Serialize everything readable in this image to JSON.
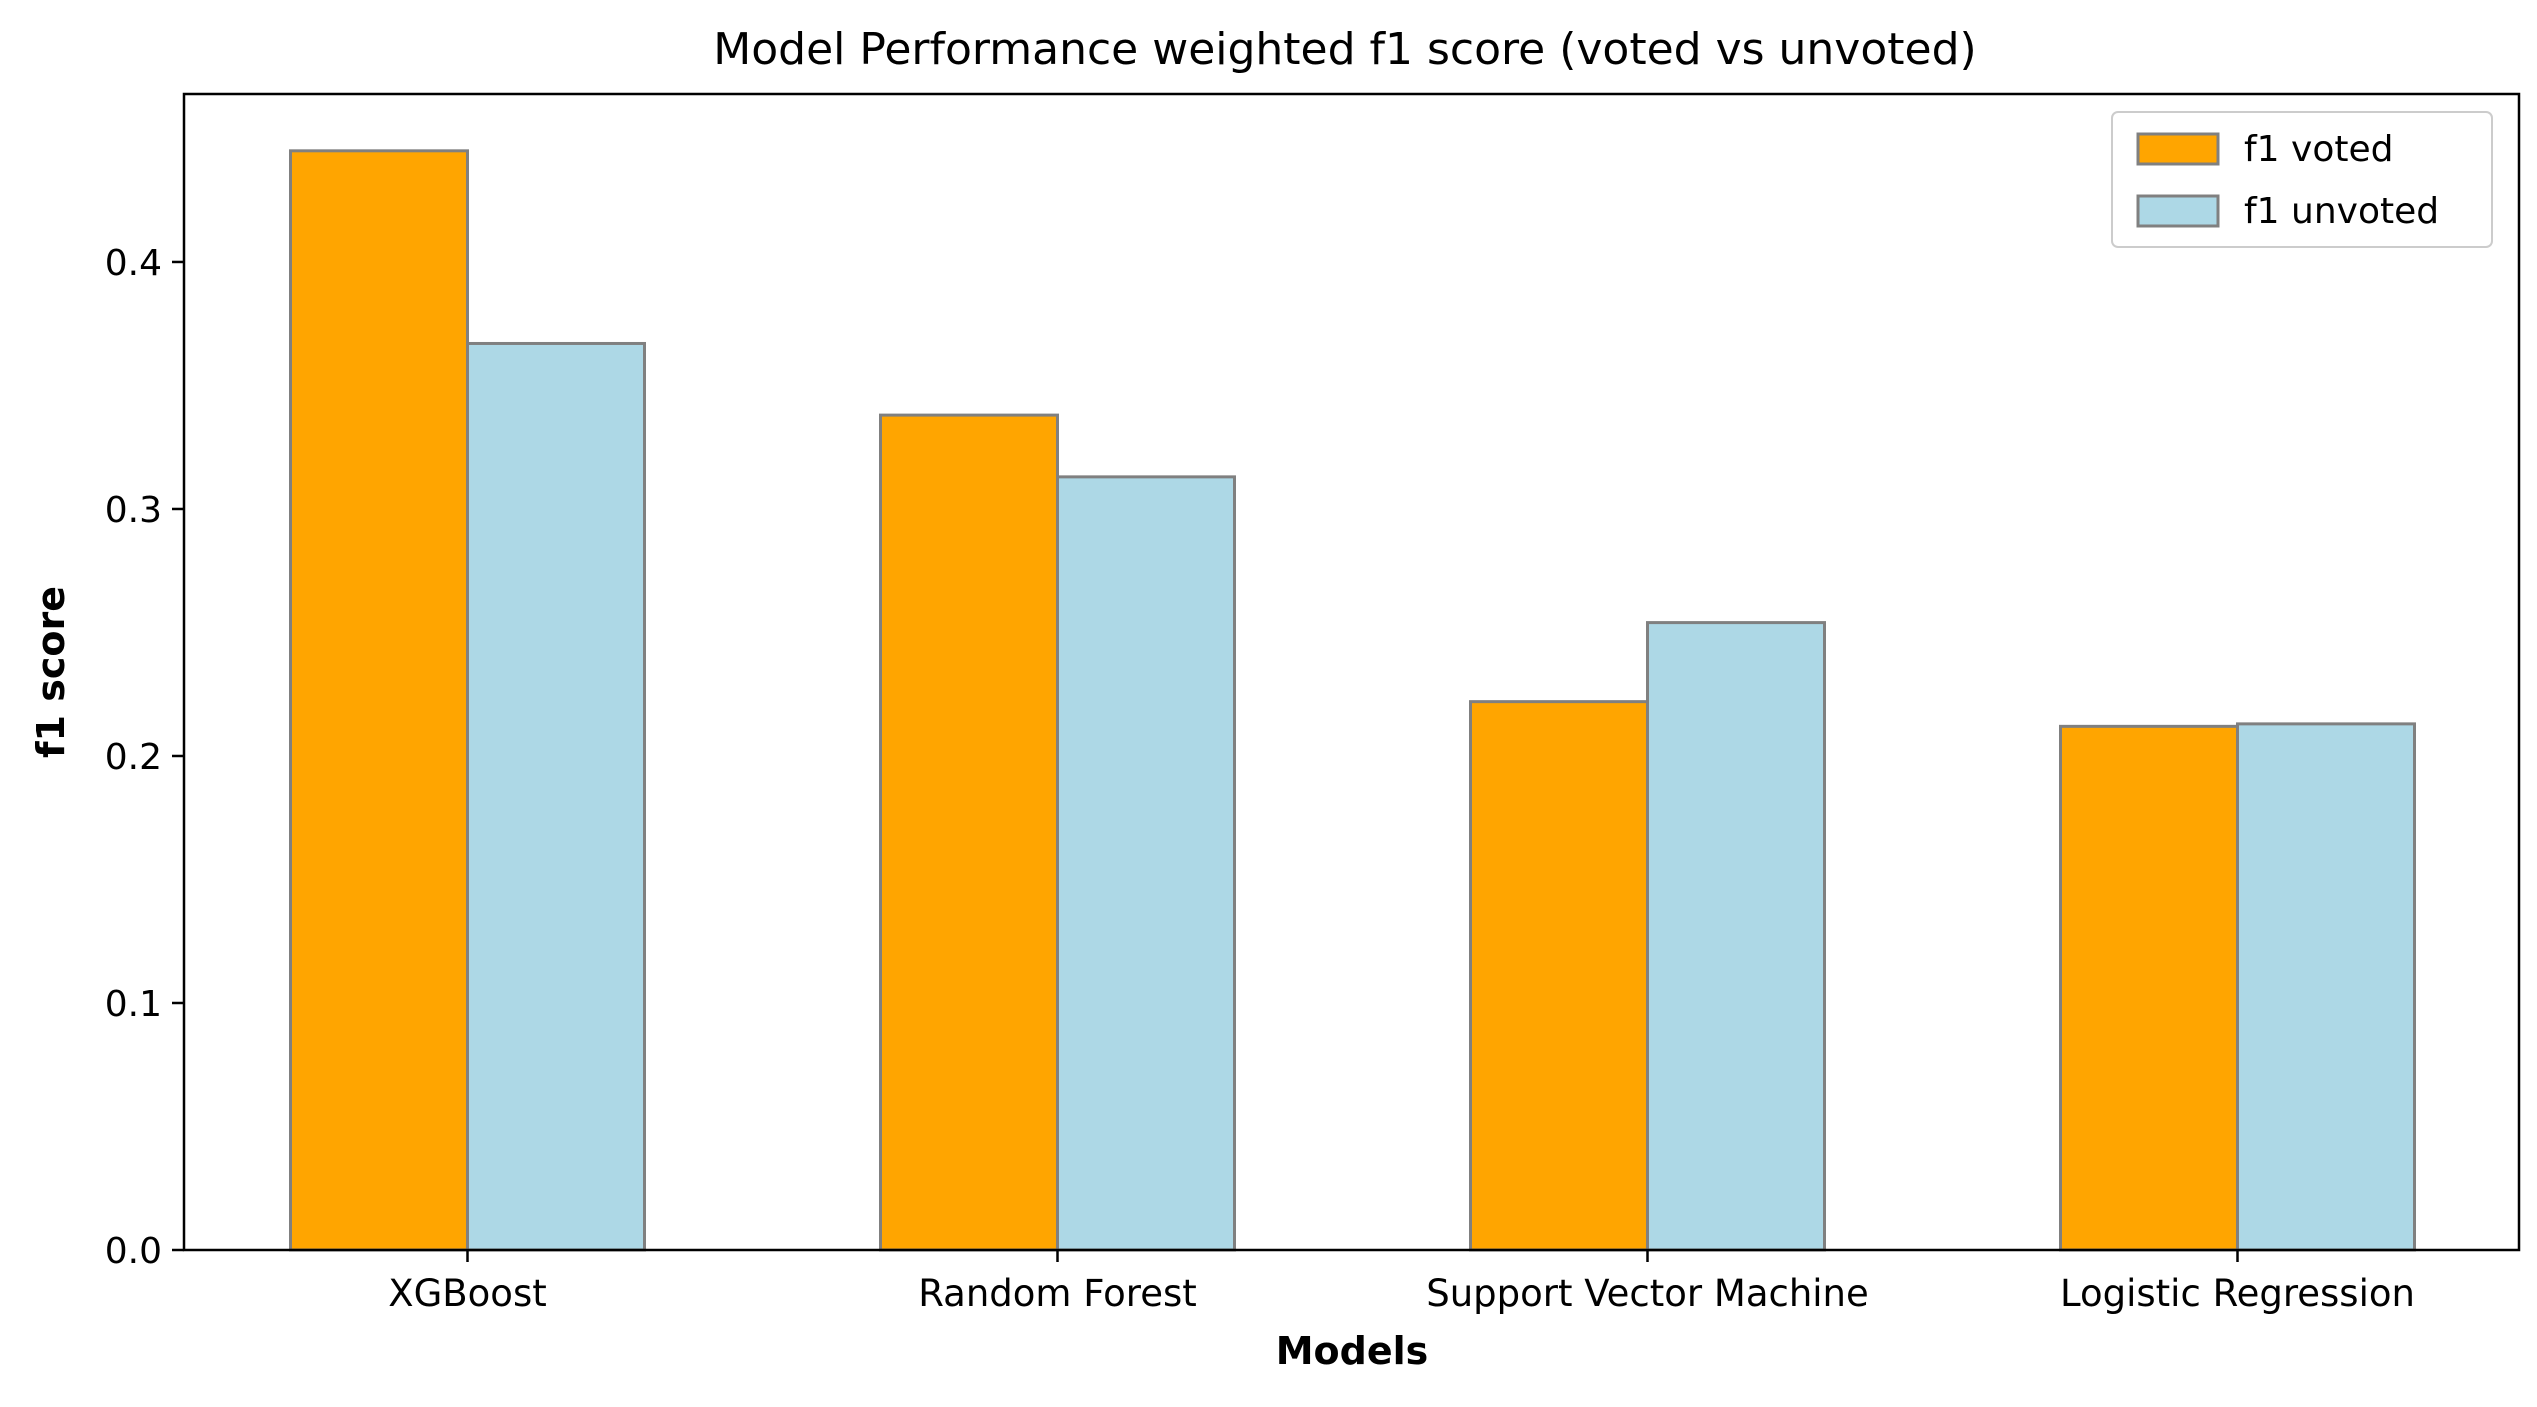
{
  "chart_data": {
    "type": "bar",
    "title": "Model Performance weighted f1 score (voted vs unvoted)",
    "xlabel": "Models",
    "ylabel": "f1 score",
    "categories": [
      "XGBoost",
      "Random Forest",
      "Support Vector Machine",
      "Logistic Regression"
    ],
    "series": [
      {
        "name": "f1 voted",
        "color": "#ffa500",
        "values": [
          0.445,
          0.338,
          0.222,
          0.212
        ]
      },
      {
        "name": "f1 unvoted",
        "color": "#add8e6",
        "values": [
          0.367,
          0.313,
          0.254,
          0.213
        ]
      }
    ],
    "ylim": [
      0,
      0.468
    ],
    "yticks": [
      0.0,
      0.1,
      0.2,
      0.3,
      0.4
    ],
    "ytick_labels": [
      "0.0",
      "0.1",
      "0.2",
      "0.3",
      "0.4"
    ],
    "legend_position": "top-right",
    "grid": false,
    "bar_edge_color": "#808080"
  }
}
